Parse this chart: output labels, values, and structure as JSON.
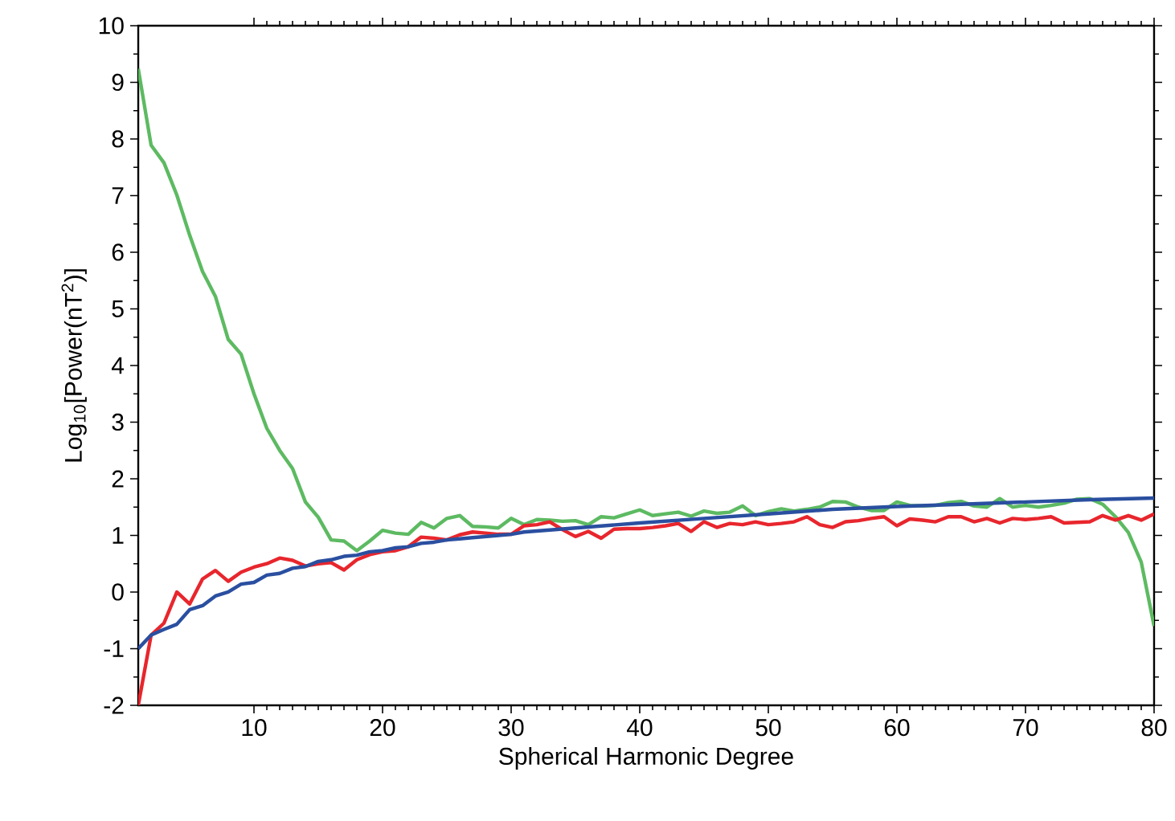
{
  "chart_data": {
    "type": "line",
    "xlabel": "Spherical Harmonic Degree",
    "ylabel": "Log$_{10}$[Power(nT$^{2}$)]",
    "xlim": [
      1,
      80
    ],
    "ylim": [
      -2,
      10
    ],
    "xticks": [
      10,
      20,
      30,
      40,
      50,
      60,
      70,
      80
    ],
    "yticks": [
      -2,
      -1,
      0,
      1,
      2,
      3,
      4,
      5,
      6,
      7,
      8,
      9,
      10
    ],
    "line_style": "solid",
    "marker": "none",
    "series": [
      {
        "color": "#5dba62",
        "x": [
          1,
          2,
          3,
          4,
          5,
          6,
          7,
          8,
          9,
          10,
          11,
          12,
          13,
          14,
          15,
          16,
          17,
          18,
          19,
          20,
          21,
          22,
          23,
          24,
          25,
          26,
          27,
          28,
          29,
          30,
          31,
          32,
          33,
          34,
          35,
          36,
          37,
          38,
          39,
          40,
          41,
          42,
          43,
          44,
          45,
          46,
          47,
          48,
          49,
          50,
          51,
          52,
          53,
          54,
          55,
          56,
          57,
          58,
          59,
          60,
          61,
          62,
          63,
          64,
          65,
          66,
          67,
          68,
          69,
          70,
          71,
          72,
          73,
          74,
          75,
          76,
          77,
          78,
          79,
          80
        ],
        "values": [
          9.24,
          7.89,
          7.58,
          7.01,
          6.3,
          5.66,
          5.22,
          4.46,
          4.2,
          3.5,
          2.89,
          2.5,
          2.18,
          1.59,
          1.32,
          0.92,
          0.9,
          0.73,
          0.9,
          1.09,
          1.04,
          1.02,
          1.23,
          1.13,
          1.3,
          1.35,
          1.16,
          1.15,
          1.13,
          1.3,
          1.19,
          1.28,
          1.27,
          1.25,
          1.26,
          1.19,
          1.33,
          1.31,
          1.38,
          1.45,
          1.35,
          1.38,
          1.41,
          1.34,
          1.43,
          1.39,
          1.41,
          1.52,
          1.35,
          1.42,
          1.47,
          1.43,
          1.46,
          1.5,
          1.6,
          1.59,
          1.5,
          1.44,
          1.44,
          1.59,
          1.53,
          1.52,
          1.53,
          1.58,
          1.6,
          1.52,
          1.5,
          1.65,
          1.5,
          1.53,
          1.5,
          1.53,
          1.57,
          1.64,
          1.65,
          1.55,
          1.33,
          1.05,
          0.53,
          -0.6
        ]
      },
      {
        "color": "#e8262d",
        "x": [
          1,
          2,
          3,
          4,
          5,
          6,
          7,
          8,
          9,
          10,
          11,
          12,
          13,
          14,
          15,
          16,
          17,
          18,
          19,
          20,
          21,
          22,
          23,
          24,
          25,
          26,
          27,
          28,
          29,
          30,
          31,
          32,
          33,
          34,
          35,
          36,
          37,
          38,
          39,
          40,
          41,
          42,
          43,
          44,
          45,
          46,
          47,
          48,
          49,
          50,
          51,
          52,
          53,
          54,
          55,
          56,
          57,
          58,
          59,
          60,
          61,
          62,
          63,
          64,
          65,
          66,
          67,
          68,
          69,
          70,
          71,
          72,
          73,
          74,
          75,
          76,
          77,
          78,
          79,
          80
        ],
        "values": [
          -2.0,
          -0.76,
          -0.55,
          0.0,
          -0.21,
          0.23,
          0.38,
          0.19,
          0.35,
          0.44,
          0.5,
          0.6,
          0.56,
          0.46,
          0.5,
          0.52,
          0.39,
          0.57,
          0.66,
          0.71,
          0.73,
          0.8,
          0.97,
          0.95,
          0.92,
          1.01,
          1.06,
          1.04,
          1.02,
          1.02,
          1.17,
          1.19,
          1.24,
          1.1,
          0.98,
          1.07,
          0.95,
          1.11,
          1.12,
          1.12,
          1.14,
          1.17,
          1.21,
          1.07,
          1.24,
          1.14,
          1.21,
          1.19,
          1.24,
          1.19,
          1.21,
          1.24,
          1.33,
          1.19,
          1.14,
          1.24,
          1.26,
          1.3,
          1.33,
          1.17,
          1.29,
          1.27,
          1.24,
          1.33,
          1.33,
          1.24,
          1.3,
          1.22,
          1.3,
          1.28,
          1.3,
          1.33,
          1.22,
          1.23,
          1.24,
          1.35,
          1.27,
          1.35,
          1.27,
          1.38
        ]
      },
      {
        "color": "#2a4fa0",
        "x": [
          1,
          2,
          3,
          4,
          5,
          6,
          7,
          8,
          9,
          10,
          11,
          12,
          13,
          14,
          15,
          16,
          17,
          18,
          19,
          20,
          21,
          22,
          23,
          24,
          25,
          26,
          27,
          28,
          29,
          30,
          31,
          35,
          40,
          45,
          50,
          55,
          60,
          65,
          70,
          75,
          80
        ],
        "values": [
          -1.0,
          -0.76,
          -0.66,
          -0.57,
          -0.31,
          -0.24,
          -0.07,
          0.0,
          0.14,
          0.17,
          0.3,
          0.33,
          0.42,
          0.45,
          0.54,
          0.57,
          0.63,
          0.65,
          0.71,
          0.73,
          0.78,
          0.8,
          0.86,
          0.88,
          0.92,
          0.94,
          0.96,
          0.98,
          1.0,
          1.02,
          1.06,
          1.13,
          1.22,
          1.3,
          1.38,
          1.46,
          1.51,
          1.55,
          1.59,
          1.63,
          1.66
        ]
      }
    ]
  }
}
